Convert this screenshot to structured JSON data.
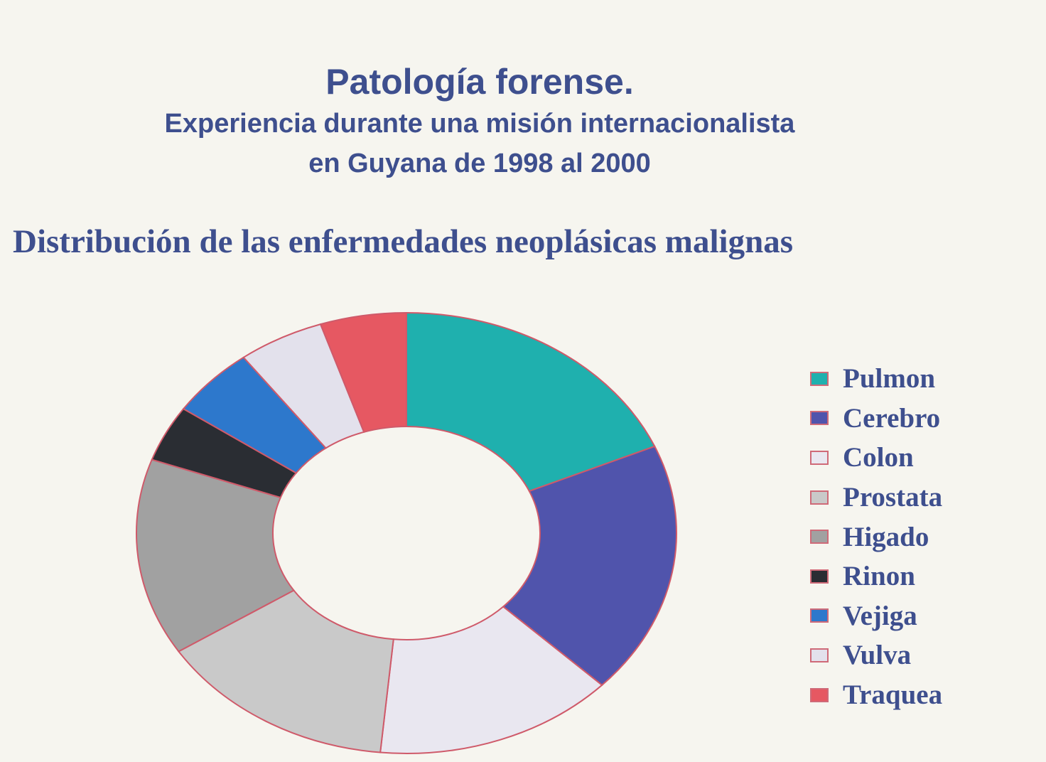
{
  "header": {
    "title": "Patología forense.",
    "subtitle_line1": "Experiencia durante una misión internacionalista",
    "subtitle_line2": "en Guyana de 1998 al  2000"
  },
  "colors": {
    "text": "#3e4f8e",
    "slice_border": "#cf5a6a",
    "background": "#f6f5ef"
  },
  "chart_data": {
    "type": "pie",
    "variant": "donut",
    "title": "Distribución de las enfermedades neoplásicas malignas",
    "legend_position": "right",
    "categories": [
      "Pulmon",
      "Cerebro",
      "Colon",
      "Prostata",
      "Higado",
      "Rinon",
      "Vejiga",
      "Vulva",
      "Traquea"
    ],
    "values": [
      18,
      18,
      14,
      14,
      14,
      4,
      5,
      5,
      5
    ],
    "colors": [
      "#1fb0ae",
      "#5054ac",
      "#e9e7f0",
      "#c9c9c9",
      "#a1a1a1",
      "#2a2d33",
      "#2d78cc",
      "#e3e1ec",
      "#e65862"
    ]
  }
}
